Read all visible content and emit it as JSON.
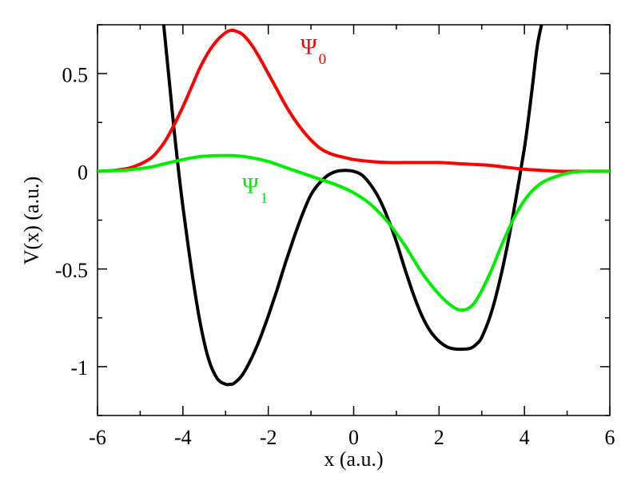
{
  "chart_data": {
    "type": "line",
    "title": "",
    "xlabel": "x (a.u.)",
    "ylabel": "V(x) (a.u.)",
    "xlim": [
      -6,
      6
    ],
    "ylim": [
      -1.25,
      0.75
    ],
    "x_ticks": [
      -6,
      -4,
      -2,
      0,
      2,
      4,
      6
    ],
    "x_tick_labels": [
      "-6",
      "-4",
      "-2",
      "0",
      "2",
      "4",
      "6"
    ],
    "y_ticks": [
      0.5,
      0,
      -0.5,
      -1
    ],
    "y_tick_labels": [
      "0.5",
      "0",
      "-0.5",
      "-1"
    ],
    "grid": false,
    "series": [
      {
        "name": "",
        "color": "#000000",
        "x": [
          -4.45,
          -4.3,
          -4.2,
          -4.1,
          -4.0,
          -3.8,
          -3.6,
          -3.4,
          -3.2,
          -3.0,
          -2.9,
          -2.8,
          -2.6,
          -2.4,
          -2.2,
          -2.0,
          -1.8,
          -1.6,
          -1.4,
          -1.2,
          -1.0,
          -0.8,
          -0.6,
          -0.4,
          -0.2,
          0.0,
          0.2,
          0.4,
          0.6,
          0.8,
          1.0,
          1.2,
          1.4,
          1.6,
          1.8,
          2.0,
          2.2,
          2.4,
          2.6,
          2.75,
          2.9,
          3.0,
          3.2,
          3.4,
          3.6,
          3.8,
          4.0,
          4.1,
          4.2,
          4.3,
          4.4
        ],
        "y": [
          0.75,
          0.42,
          0.2,
          0.0,
          -0.18,
          -0.5,
          -0.77,
          -0.96,
          -1.06,
          -1.09,
          -1.09,
          -1.085,
          -1.04,
          -0.96,
          -0.86,
          -0.74,
          -0.61,
          -0.47,
          -0.34,
          -0.22,
          -0.12,
          -0.06,
          -0.02,
          0.0,
          0.005,
          0.0,
          -0.02,
          -0.07,
          -0.14,
          -0.24,
          -0.36,
          -0.5,
          -0.63,
          -0.74,
          -0.82,
          -0.87,
          -0.9,
          -0.91,
          -0.91,
          -0.905,
          -0.88,
          -0.85,
          -0.74,
          -0.58,
          -0.38,
          -0.14,
          0.12,
          0.28,
          0.46,
          0.64,
          0.75
        ]
      },
      {
        "name": "",
        "color": "#ff0000",
        "x": [
          -6.0,
          -5.6,
          -5.2,
          -4.8,
          -4.6,
          -4.4,
          -4.2,
          -4.0,
          -3.8,
          -3.6,
          -3.4,
          -3.2,
          -3.0,
          -2.9,
          -2.8,
          -2.6,
          -2.4,
          -2.2,
          -2.0,
          -1.8,
          -1.6,
          -1.4,
          -1.2,
          -1.0,
          -0.8,
          -0.6,
          -0.4,
          -0.2,
          0.0,
          0.4,
          0.8,
          1.2,
          1.6,
          2.0,
          2.4,
          2.8,
          3.2,
          3.6,
          4.0,
          4.4,
          4.8,
          5.2,
          5.6,
          6.0
        ],
        "y": [
          0.0,
          0.005,
          0.02,
          0.06,
          0.1,
          0.16,
          0.24,
          0.33,
          0.43,
          0.53,
          0.61,
          0.67,
          0.71,
          0.72,
          0.72,
          0.7,
          0.65,
          0.58,
          0.5,
          0.42,
          0.34,
          0.27,
          0.21,
          0.16,
          0.12,
          0.095,
          0.08,
          0.07,
          0.06,
          0.05,
          0.045,
          0.045,
          0.045,
          0.045,
          0.04,
          0.035,
          0.03,
          0.02,
          0.01,
          0.005,
          0.0,
          0.0,
          0.0,
          0.0
        ]
      },
      {
        "name": "",
        "color": "#00ee00",
        "x": [
          -6.0,
          -5.4,
          -4.8,
          -4.4,
          -4.0,
          -3.6,
          -3.2,
          -2.8,
          -2.4,
          -2.0,
          -1.6,
          -1.2,
          -0.8,
          -0.4,
          0.0,
          0.4,
          0.8,
          1.2,
          1.6,
          2.0,
          2.3,
          2.5,
          2.7,
          2.9,
          3.2,
          3.5,
          3.8,
          4.1,
          4.4,
          4.7,
          5.0,
          5.4,
          6.0
        ],
        "y": [
          0.0,
          0.005,
          0.02,
          0.04,
          0.06,
          0.075,
          0.08,
          0.08,
          0.07,
          0.05,
          0.02,
          -0.01,
          -0.04,
          -0.07,
          -0.11,
          -0.17,
          -0.26,
          -0.38,
          -0.52,
          -0.63,
          -0.69,
          -0.71,
          -0.7,
          -0.65,
          -0.52,
          -0.36,
          -0.22,
          -0.12,
          -0.06,
          -0.03,
          -0.01,
          0.0,
          0.0
        ]
      }
    ],
    "annotations": [
      {
        "symbol": "Ψ",
        "subscript": "0",
        "color": "#ff0000"
      },
      {
        "symbol": "Ψ",
        "subscript": "1",
        "color": "#00ee00"
      }
    ]
  }
}
